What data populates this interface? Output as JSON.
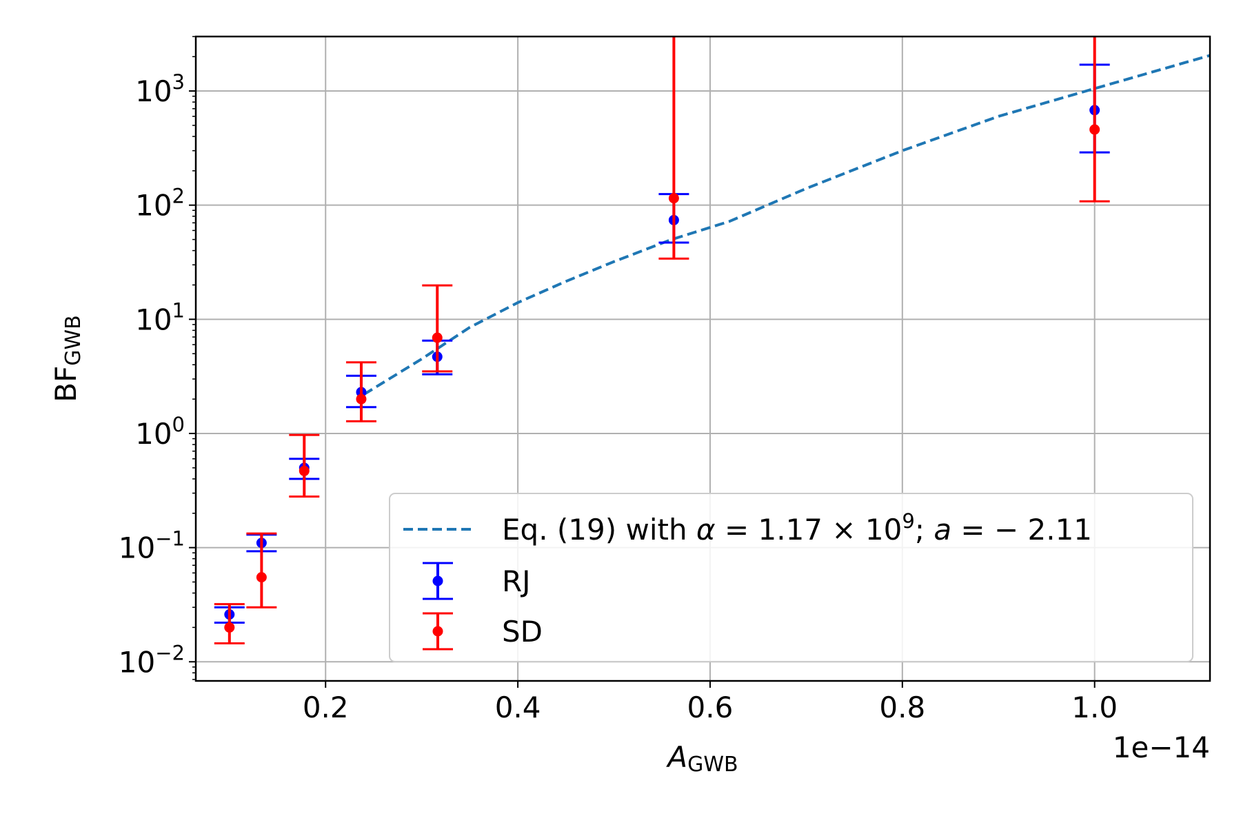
{
  "chart_data": {
    "type": "scatter",
    "xlabel": {
      "main": "A",
      "sub": "GWB"
    },
    "ylabel": {
      "main": "BF",
      "sub": "GWB"
    },
    "offset_text": "1e−14",
    "x_scale_exponent": -14,
    "yscale": "log",
    "xlim": [
      6.5e-16,
      1.12e-14
    ],
    "ylim": [
      0.0068,
      3000
    ],
    "grid": true,
    "legend_position": "lower-right",
    "x_tick_values": [
      2e-15,
      4e-15,
      6e-15,
      8e-15,
      1e-14
    ],
    "x_tick_labels": [
      "0.2",
      "0.4",
      "0.6",
      "0.8",
      "1.0"
    ],
    "y_ticks": [
      {
        "value": 1000,
        "base": "10",
        "exp": "3"
      },
      {
        "value": 100,
        "base": "10",
        "exp": "2"
      },
      {
        "value": 10,
        "base": "10",
        "exp": "1"
      },
      {
        "value": 1,
        "base": "10",
        "exp": "0"
      },
      {
        "value": 0.1,
        "base": "10",
        "exp": "−1"
      },
      {
        "value": 0.01,
        "base": "10",
        "exp": "−2"
      }
    ],
    "series": [
      {
        "name": "RJ",
        "color": "#0000ff",
        "kind": "errorbar",
        "points": [
          {
            "x": 1e-15,
            "y": 0.026,
            "lo": 0.022,
            "hi": 0.03
          },
          {
            "x": 1.334e-15,
            "y": 0.11,
            "lo": 0.093,
            "hi": 0.13
          },
          {
            "x": 1.778e-15,
            "y": 0.5,
            "lo": 0.4,
            "hi": 0.6
          },
          {
            "x": 2.371e-15,
            "y": 2.3,
            "lo": 1.7,
            "hi": 3.2
          },
          {
            "x": 3.162e-15,
            "y": 4.7,
            "lo": 3.3,
            "hi": 6.5
          },
          {
            "x": 5.623e-15,
            "y": 74,
            "lo": 47,
            "hi": 125
          },
          {
            "x": 1e-14,
            "y": 680,
            "lo": 290,
            "hi": 1700
          }
        ]
      },
      {
        "name": "SD",
        "color": "#ff0000",
        "kind": "errorbar",
        "points": [
          {
            "x": 1e-15,
            "y": 0.02,
            "lo": 0.0145,
            "hi": 0.032
          },
          {
            "x": 1.334e-15,
            "y": 0.055,
            "lo": 0.03,
            "hi": 0.133
          },
          {
            "x": 1.778e-15,
            "y": 0.47,
            "lo": 0.28,
            "hi": 0.97
          },
          {
            "x": 2.371e-15,
            "y": 2.0,
            "lo": 1.28,
            "hi": 4.2
          },
          {
            "x": 3.162e-15,
            "y": 6.9,
            "lo": 3.5,
            "hi": 19.8
          },
          {
            "x": 5.623e-15,
            "y": 115,
            "lo": 34,
            "hi": 100000
          },
          {
            "x": 1e-14,
            "y": 460,
            "lo": 108,
            "hi": 100000
          }
        ]
      },
      {
        "name": "Eq. (19) with α = 1.17 × 10⁹; a = − 2.11",
        "color": "#1f77b4",
        "kind": "dashed-line",
        "x": [
          2.4e-15,
          3e-15,
          3.5e-15,
          4e-15,
          4.5e-15,
          5e-15,
          5.6e-15,
          6.2e-15,
          7e-15,
          8e-15,
          9e-15,
          1e-14,
          1.12e-14
        ],
        "y": [
          2.2,
          4.5,
          8.5,
          14,
          21.5,
          32,
          50,
          72,
          140,
          300,
          600,
          1050,
          2050
        ]
      }
    ],
    "legend": [
      {
        "series": 2,
        "parts": [
          {
            "t": "Eq. (19) with "
          },
          {
            "t": "α",
            "style": "italic"
          },
          {
            "t": " = 1.17 × 10"
          },
          {
            "t": "9",
            "style": "sup"
          },
          {
            "t": "; "
          },
          {
            "t": "a",
            "style": "italic"
          },
          {
            "t": " = − 2.11"
          }
        ]
      },
      {
        "series": 0,
        "label": "RJ"
      },
      {
        "series": 1,
        "label": "SD"
      }
    ]
  }
}
